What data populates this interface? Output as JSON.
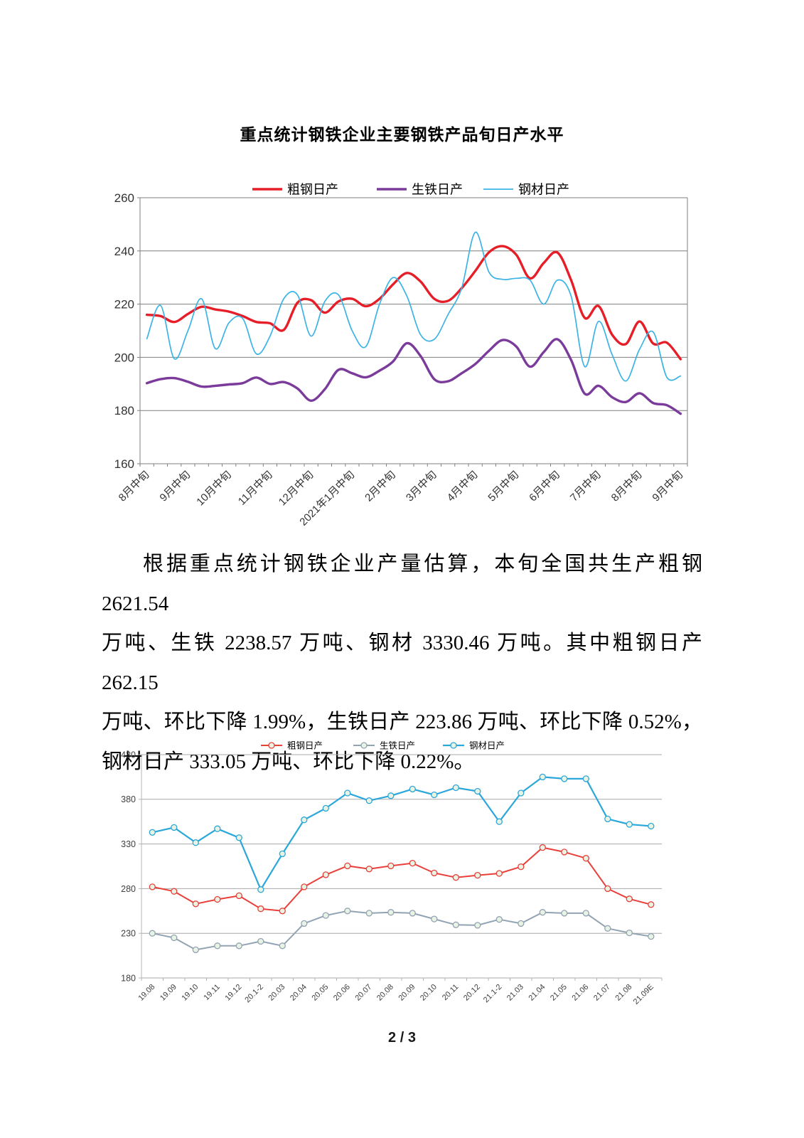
{
  "page": {
    "title": "重点统计钢铁企业主要钢铁产品旬日产水平",
    "page_number": "2 / 3"
  },
  "paragraph": {
    "lines": [
      "根据重点统计钢铁企业产量估算，本旬全国共生产粗钢 2621.54",
      "万吨、生铁 2238.57 万吨、钢材 3330.46 万吨。其中粗钢日产 262.15",
      "万吨、环比下降 1.99%，生铁日产 223.86 万吨、环比下降 0.52%，",
      "钢材日产 333.05 万吨、环比下降 0.22%。"
    ]
  },
  "chart_data": [
    {
      "type": "line",
      "title": "重点统计钢铁企业主要钢铁产品旬日产水平",
      "smooth": true,
      "markers": false,
      "grid": true,
      "legend_position": "top",
      "ylim": [
        160,
        260
      ],
      "ytick_step": 20,
      "n_points": 40,
      "x_label_step": 3,
      "x_tick_labels": [
        "8月中旬",
        "9月中旬",
        "10月中旬",
        "11月中旬",
        "12月中旬",
        "2021年1月中旬",
        "2月中旬",
        "3月中旬",
        "4月中旬",
        "5月中旬",
        "6月中旬",
        "7月中旬",
        "8月中旬",
        "9月中旬"
      ],
      "series": [
        {
          "name": "粗钢日产",
          "color": "#e61e28",
          "width": 3.4,
          "values": [
            216,
            215.5,
            213.3,
            216.3,
            219,
            218,
            217.2,
            215.5,
            213.3,
            212.8,
            210.3,
            220.5,
            221.5,
            216.8,
            221,
            222,
            219.2,
            222,
            227.5,
            231.7,
            228.5,
            222,
            221.2,
            226,
            232.5,
            239.5,
            241.8,
            238.5,
            229.7,
            235.5,
            239.4,
            229,
            214.8,
            219.3,
            208.5,
            205,
            213.5,
            205.2,
            205.5,
            199.3
          ]
        },
        {
          "name": "生铁日产",
          "color": "#7a3b9b",
          "width": 3.4,
          "values": [
            190.3,
            191.8,
            192.2,
            190.8,
            189,
            189.3,
            189.8,
            190.3,
            192.4,
            190,
            190.7,
            188.3,
            183.7,
            188,
            195.3,
            194,
            192.5,
            195,
            198.5,
            205.3,
            200.5,
            191.8,
            191,
            194,
            197.5,
            202.5,
            206.5,
            204,
            196.5,
            202,
            206.8,
            199,
            186.3,
            189.3,
            185,
            183.2,
            186.5,
            182.8,
            182,
            178.8
          ]
        },
        {
          "name": "钢材日产",
          "color": "#3bb4e5",
          "width": 1.7,
          "values": [
            207,
            219.5,
            199.5,
            210,
            222,
            203.3,
            213,
            214.6,
            201.3,
            208,
            222,
            223.5,
            208,
            221,
            223.5,
            210,
            204,
            220,
            230,
            223,
            208.5,
            206.8,
            216,
            226,
            247,
            232,
            229.3,
            229.7,
            229,
            220,
            229,
            223,
            196.5,
            213.5,
            201,
            191.1,
            203,
            209.5,
            192.5,
            193
          ]
        }
      ]
    },
    {
      "type": "line",
      "smooth": false,
      "markers": true,
      "grid": true,
      "legend_position": "top",
      "ylim": [
        180,
        430
      ],
      "ytick_step": 50,
      "x_label_step": 1,
      "marker_fill": "#e9f3e3",
      "categories": [
        "19.08",
        "19.09",
        "19.10",
        "19.11",
        "19.12",
        "20.1-2",
        "20.03",
        "20.04",
        "20.05",
        "20.06",
        "20.07",
        "20.08",
        "20.09",
        "20.10",
        "20.11",
        "20.12",
        "21.1-2",
        "21.03",
        "21.04",
        "21.05",
        "21.06",
        "21.07",
        "21.08",
        "21.09E"
      ],
      "series": [
        {
          "name": "粗钢日产",
          "color": "#e8403a",
          "width": 2,
          "values": [
            282,
            277,
            263,
            268,
            272,
            257.5,
            255,
            282,
            295.5,
            305.5,
            302,
            305.5,
            308.5,
            297.5,
            292.5,
            295,
            297,
            304.5,
            326,
            321,
            314,
            280,
            268.5,
            262.2
          ]
        },
        {
          "name": "生铁日产",
          "color": "#92a3b4",
          "width": 2,
          "values": [
            230,
            225,
            211.5,
            216,
            216,
            221,
            216,
            241,
            250,
            255,
            252.5,
            253.5,
            252.5,
            246,
            239.5,
            239,
            245.5,
            241,
            253.5,
            252.5,
            252.5,
            235.5,
            230.5,
            226.5
          ]
        },
        {
          "name": "钢材日产",
          "color": "#2ba7d9",
          "width": 2.2,
          "values": [
            343,
            348.5,
            331.5,
            347,
            337,
            279,
            319,
            357,
            370,
            387,
            378.5,
            384,
            391.5,
            385,
            393,
            389,
            355,
            387,
            405,
            403,
            403,
            358,
            352,
            350
          ]
        }
      ]
    }
  ]
}
